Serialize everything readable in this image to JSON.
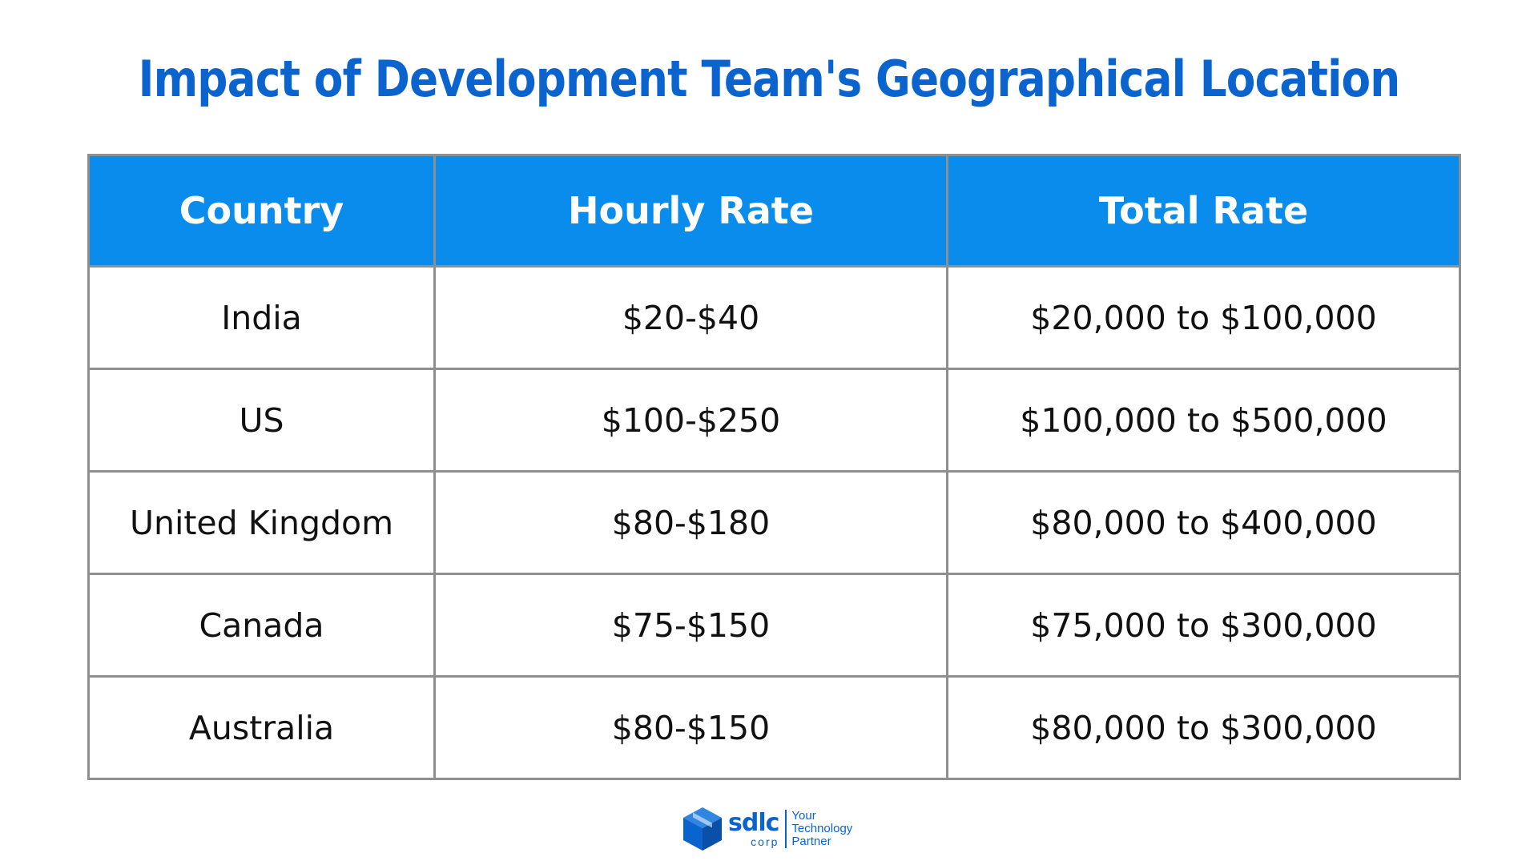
{
  "title": "Impact of Development Team's Geographical Location",
  "table": {
    "headers": [
      "Country",
      "Hourly Rate",
      "Total Rate"
    ],
    "rows": [
      [
        "India",
        "$20-$40",
        "$20,000 to $100,000"
      ],
      [
        "US",
        "$100-$250",
        "$100,000 to $500,000"
      ],
      [
        "United Kingdom",
        "$80-$180",
        "$80,000 to $400,000"
      ],
      [
        "Canada",
        "$75-$150",
        "$75,000 to $300,000"
      ],
      [
        "Australia",
        "$80-$150",
        "$80,000 to $300,000"
      ]
    ]
  },
  "logo": {
    "icon": "cube-icon",
    "name": "sdlc",
    "sub": "corp",
    "tagline": [
      "Your",
      "Technology",
      "Partner"
    ]
  },
  "colors": {
    "title": "#0b63ce",
    "header_bg": "#0a8cec",
    "header_text": "#ffffff",
    "border": "#8f8f8f"
  }
}
